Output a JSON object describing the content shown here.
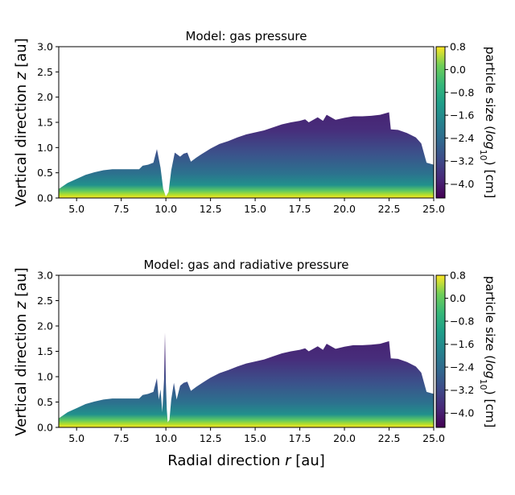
{
  "chart_data": [
    {
      "type": "heatmap",
      "title": "Model: gas pressure",
      "ylabel": "Vertical direction $z$ [au]",
      "xlabel": "",
      "xlim": [
        4.0,
        25.0
      ],
      "ylim": [
        0.0,
        3.0
      ],
      "xticks": [
        "5.0",
        "7.5",
        "10.0",
        "12.5",
        "15.0",
        "17.5",
        "20.0",
        "22.5",
        "25.0"
      ],
      "yticks": [
        "0.0",
        "0.5",
        "1.0",
        "1.5",
        "2.0",
        "2.5",
        "3.0"
      ],
      "colorbar": {
        "label": "particle size ($log_{10}$) [cm]",
        "range": [
          -4.5,
          0.8
        ],
        "ticks": [
          "0.8",
          "0.0",
          "−0.8",
          "−1.6",
          "−2.4",
          "−3.2",
          "−4.0"
        ],
        "colormap": "viridis"
      },
      "upper_envelope": {
        "r": [
          4.0,
          4.5,
          5.0,
          5.5,
          6.0,
          6.5,
          7.0,
          7.5,
          8.0,
          8.5,
          8.7,
          9.0,
          9.3,
          9.5,
          9.7,
          9.85,
          10.0,
          10.15,
          10.3,
          10.5,
          10.8,
          11.0,
          11.2,
          11.4,
          11.7,
          12.0,
          12.5,
          13.0,
          13.5,
          14.0,
          14.5,
          15.0,
          15.5,
          16.0,
          16.5,
          17.0,
          17.5,
          17.8,
          18.0,
          18.5,
          18.8,
          19.0,
          19.5,
          20.0,
          20.5,
          21.0,
          21.5,
          22.0,
          22.5,
          22.6,
          23.0,
          23.5,
          24.0,
          24.3,
          24.6,
          25.0
        ],
        "z": [
          0.18,
          0.3,
          0.38,
          0.46,
          0.51,
          0.55,
          0.57,
          0.57,
          0.57,
          0.57,
          0.64,
          0.66,
          0.7,
          0.97,
          0.6,
          0.18,
          0.03,
          0.12,
          0.55,
          0.9,
          0.82,
          0.88,
          0.9,
          0.72,
          0.8,
          0.87,
          0.98,
          1.07,
          1.13,
          1.2,
          1.26,
          1.3,
          1.34,
          1.4,
          1.46,
          1.5,
          1.53,
          1.56,
          1.5,
          1.6,
          1.53,
          1.65,
          1.55,
          1.59,
          1.62,
          1.62,
          1.63,
          1.65,
          1.7,
          1.36,
          1.35,
          1.29,
          1.2,
          1.08,
          0.7,
          0.66
        ]
      }
    },
    {
      "type": "heatmap",
      "title": "Model: gas and radiative pressure",
      "ylabel": "Vertical direction $z$ [au]",
      "xlabel": "Radial direction $r$ [au]",
      "xlim": [
        4.0,
        25.0
      ],
      "ylim": [
        0.0,
        3.0
      ],
      "xticks": [
        "5.0",
        "7.5",
        "10.0",
        "12.5",
        "15.0",
        "17.5",
        "20.0",
        "22.5",
        "25.0"
      ],
      "yticks": [
        "0.0",
        "0.5",
        "1.0",
        "1.5",
        "2.0",
        "2.5",
        "3.0"
      ],
      "colorbar": {
        "label": "particle size ($log_{10}$) [cm]",
        "range": [
          -4.5,
          0.8
        ],
        "ticks": [
          "0.8",
          "0.0",
          "−0.8",
          "−1.6",
          "−2.4",
          "−3.2",
          "−4.0"
        ],
        "colormap": "viridis"
      },
      "upper_envelope": {
        "r": [
          4.0,
          4.5,
          5.0,
          5.5,
          6.0,
          6.5,
          7.0,
          7.5,
          8.0,
          8.5,
          8.7,
          9.0,
          9.3,
          9.5,
          9.6,
          9.7,
          9.8,
          9.9,
          9.95,
          10.0,
          10.05,
          10.1,
          10.2,
          10.3,
          10.45,
          10.6,
          10.8,
          11.0,
          11.2,
          11.4,
          11.7,
          12.0,
          12.5,
          13.0,
          13.5,
          14.0,
          14.5,
          15.0,
          15.5,
          16.0,
          16.5,
          17.0,
          17.5,
          17.8,
          18.0,
          18.5,
          18.8,
          19.0,
          19.5,
          20.0,
          20.5,
          21.0,
          21.5,
          22.0,
          22.5,
          22.6,
          23.0,
          23.5,
          24.0,
          24.3,
          24.6,
          25.0
        ],
        "z": [
          0.18,
          0.3,
          0.38,
          0.46,
          0.51,
          0.55,
          0.57,
          0.57,
          0.57,
          0.57,
          0.64,
          0.66,
          0.7,
          0.97,
          0.55,
          0.75,
          0.3,
          0.95,
          1.87,
          0.9,
          0.35,
          0.1,
          0.15,
          0.55,
          0.88,
          0.55,
          0.82,
          0.88,
          0.9,
          0.72,
          0.8,
          0.87,
          0.98,
          1.07,
          1.13,
          1.2,
          1.26,
          1.3,
          1.34,
          1.4,
          1.46,
          1.5,
          1.53,
          1.56,
          1.5,
          1.6,
          1.53,
          1.65,
          1.55,
          1.59,
          1.62,
          1.62,
          1.63,
          1.65,
          1.7,
          1.36,
          1.35,
          1.29,
          1.2,
          1.08,
          0.7,
          0.66
        ]
      }
    }
  ]
}
